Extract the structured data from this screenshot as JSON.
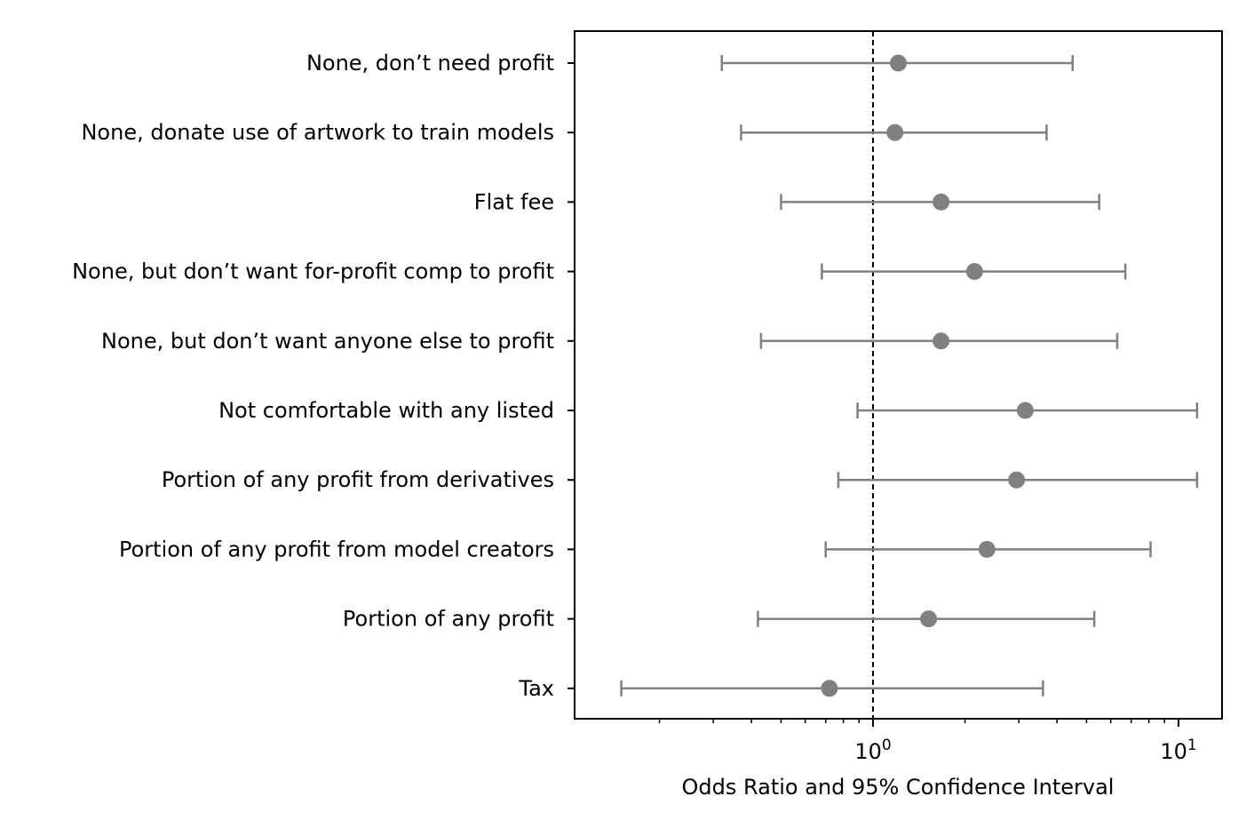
{
  "chart_data": {
    "type": "scatter",
    "subtype": "forest-plot",
    "title": "",
    "xlabel": "Odds Ratio and 95% Confidence Interval",
    "ylabel": "",
    "xscale": "log",
    "xlim": [
      0.1,
      14.5
    ],
    "reference_line": {
      "x": 1,
      "style": "dashed",
      "color": "#000000"
    },
    "x_ticks": [
      {
        "value": 1,
        "base": "10",
        "exp": "0"
      },
      {
        "value": 10,
        "base": "10",
        "exp": "1"
      }
    ],
    "minor_ticks": [
      0.2,
      0.3,
      0.4,
      0.5,
      0.6,
      0.7,
      0.8,
      0.9,
      2,
      3,
      4,
      5,
      6,
      7,
      8,
      9
    ],
    "grid": false,
    "legend": "none",
    "marker_color": "#808080",
    "categories": [
      "None, don’t need profit",
      "None, donate use of artwork to train models",
      "Flat fee",
      "None, but don’t want for-profit comp to profit",
      "None, but don’t want anyone else to profit",
      "Not comfortable with any listed",
      "Portion of any profit from derivatives",
      "Portion of any profit from model creators",
      "Portion of any profit",
      "Tax"
    ],
    "odds_ratio": [
      1.21,
      1.18,
      1.67,
      2.15,
      1.67,
      3.15,
      2.95,
      2.36,
      1.52,
      0.72
    ],
    "ci_lower": [
      0.32,
      0.37,
      0.5,
      0.68,
      0.43,
      0.89,
      0.77,
      0.7,
      0.42,
      0.15
    ],
    "ci_upper": [
      4.5,
      3.7,
      5.5,
      6.7,
      6.3,
      11.5,
      11.5,
      8.1,
      5.3,
      3.6
    ]
  }
}
